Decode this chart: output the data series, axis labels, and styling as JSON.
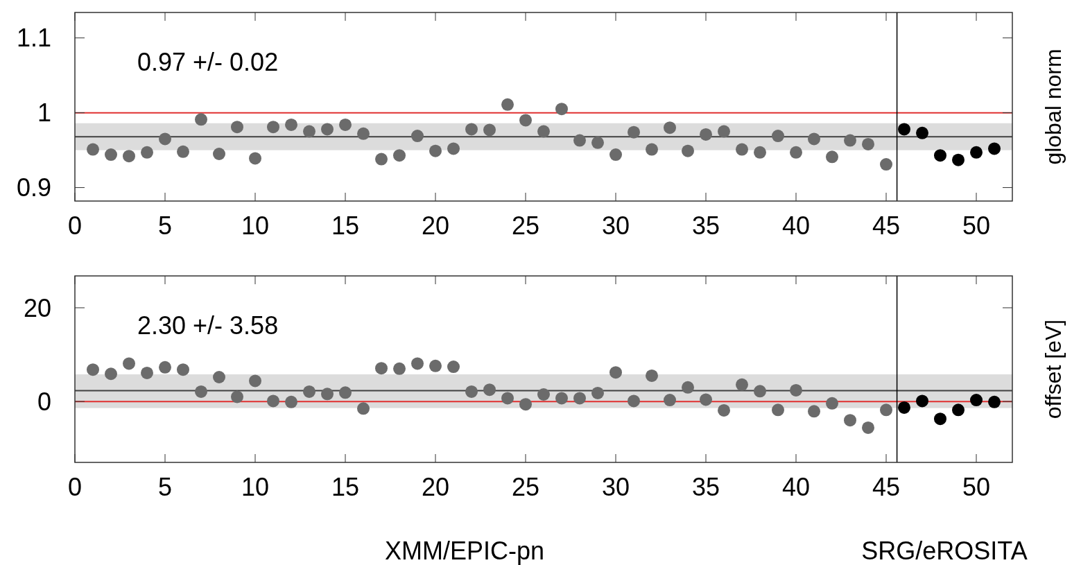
{
  "chart_data": [
    {
      "type": "scatter",
      "ylabel": "global norm",
      "annotations": [
        "0.97 +/- 0.02"
      ],
      "xlim": [
        0,
        52
      ],
      "ylim": [
        0.882,
        1.134
      ],
      "xticks": [
        0,
        5,
        10,
        15,
        20,
        25,
        30,
        35,
        40,
        45,
        50
      ],
      "yticks": [
        0.9,
        1,
        1.1
      ],
      "grid": false,
      "marker": "circle",
      "series": [
        {
          "color": "#6b6b6b",
          "x": [
            1,
            2,
            3,
            4,
            5,
            6,
            7,
            8,
            9,
            10,
            11,
            12,
            13,
            14,
            15,
            16,
            17,
            18,
            19,
            20,
            21,
            22,
            23,
            24,
            25,
            26,
            27,
            28,
            29,
            30,
            31,
            32,
            33,
            34,
            35,
            36,
            37,
            38,
            39,
            40,
            41,
            42,
            43,
            44,
            45
          ],
          "values": [
            0.951,
            0.944,
            0.942,
            0.947,
            0.965,
            0.948,
            0.991,
            0.945,
            0.981,
            0.939,
            0.981,
            0.984,
            0.975,
            0.978,
            0.984,
            0.972,
            0.938,
            0.943,
            0.969,
            0.949,
            0.952,
            0.978,
            0.977,
            1.011,
            0.99,
            0.975,
            1.005,
            0.963,
            0.96,
            0.944,
            0.974,
            0.951,
            0.98,
            0.949,
            0.971,
            0.975,
            0.951,
            0.947,
            0.969,
            0.947,
            0.965,
            0.941,
            0.963,
            0.958,
            0.931
          ]
        },
        {
          "color": "#000000",
          "x": [
            46,
            47,
            48,
            49,
            50,
            51
          ],
          "values": [
            0.978,
            0.973,
            0.943,
            0.937,
            0.947,
            0.952
          ]
        }
      ],
      "ref_lines": [
        {
          "axis": "y",
          "value": 1,
          "color": "#e03030"
        },
        {
          "axis": "y",
          "value": 0.968,
          "color": "#404040"
        },
        {
          "axis": "x",
          "value": 45.6,
          "color": "#000000"
        }
      ],
      "bands": [
        {
          "axis": "y",
          "from": 0.95,
          "to": 0.986,
          "color": "#dcdcdc"
        }
      ]
    },
    {
      "type": "scatter",
      "ylabel": "offset [eV]",
      "annotations": [
        "2.30 +/- 3.58",
        "XMM/EPIC-pn",
        "SRG/eROSITA"
      ],
      "xlim": [
        0,
        52
      ],
      "ylim": [
        -13,
        26.8
      ],
      "xticks": [
        0,
        5,
        10,
        15,
        20,
        25,
        30,
        35,
        40,
        45,
        50
      ],
      "yticks": [
        0,
        20
      ],
      "grid": false,
      "marker": "circle",
      "series": [
        {
          "color": "#6b6b6b",
          "x": [
            1,
            2,
            3,
            4,
            5,
            6,
            7,
            8,
            9,
            10,
            11,
            12,
            13,
            14,
            15,
            16,
            17,
            18,
            19,
            20,
            21,
            22,
            23,
            24,
            25,
            26,
            27,
            28,
            29,
            30,
            31,
            32,
            33,
            34,
            35,
            36,
            37,
            38,
            39,
            40,
            41,
            42,
            43,
            44,
            45
          ],
          "values": [
            6.8,
            5.9,
            8.1,
            6.1,
            7.3,
            6.8,
            2.1,
            5.2,
            1.0,
            4.4,
            0.1,
            -0.1,
            2.1,
            1.6,
            1.9,
            -1.5,
            7.1,
            7.0,
            8.1,
            7.6,
            7.4,
            2.1,
            2.5,
            0.7,
            -0.6,
            1.5,
            0.7,
            0.7,
            1.8,
            6.2,
            0.1,
            5.5,
            0.3,
            3.0,
            0.4,
            -1.9,
            3.6,
            2.2,
            -1.8,
            2.4,
            -2.1,
            -0.4,
            -4.0,
            -5.6,
            -1.8
          ]
        },
        {
          "color": "#000000",
          "x": [
            46,
            47,
            48,
            49,
            50,
            51
          ],
          "values": [
            -1.3,
            0.1,
            -3.7,
            -1.8,
            0.3,
            -0.1
          ]
        }
      ],
      "ref_lines": [
        {
          "axis": "y",
          "value": 0,
          "color": "#e03030"
        },
        {
          "axis": "y",
          "value": 2.3,
          "color": "#404040"
        },
        {
          "axis": "x",
          "value": 45.6,
          "color": "#000000"
        }
      ],
      "bands": [
        {
          "axis": "y",
          "from": -1.4,
          "to": 5.8,
          "color": "#dcdcdc"
        }
      ]
    }
  ]
}
